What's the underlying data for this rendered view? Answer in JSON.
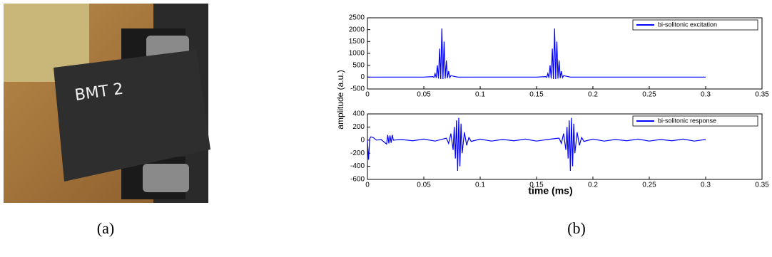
{
  "photo": {
    "label": "BMT 2"
  },
  "captions": {
    "a": "(a)",
    "b": "(b)"
  },
  "chart_data": [
    {
      "type": "line",
      "ylabel": "amplitude (a.u.)",
      "xlim": [
        0,
        0.35
      ],
      "xticks": [
        0,
        0.05,
        0.1,
        0.15,
        0.2,
        0.25,
        0.3,
        0.35
      ],
      "ylim": [
        -500,
        2500
      ],
      "yticks": [
        -500,
        0,
        500,
        1000,
        1500,
        2000,
        2500
      ],
      "legend": "upper right",
      "series": [
        {
          "name": "bi-solitonic excitation",
          "color": "#0000ff",
          "x": [
            0,
            0.05,
            0.058,
            0.059,
            0.06,
            0.061,
            0.062,
            0.063,
            0.064,
            0.065,
            0.066,
            0.067,
            0.068,
            0.069,
            0.07,
            0.071,
            0.072,
            0.073,
            0.074,
            0.08,
            0.15,
            0.158,
            0.159,
            0.16,
            0.161,
            0.162,
            0.163,
            0.164,
            0.165,
            0.166,
            0.167,
            0.168,
            0.169,
            0.17,
            0.171,
            0.172,
            0.173,
            0.174,
            0.18,
            0.3
          ],
          "values": [
            0,
            0,
            20,
            -10,
            150,
            -30,
            500,
            -60,
            1200,
            -80,
            2050,
            -80,
            1500,
            -60,
            700,
            -40,
            250,
            -20,
            60,
            0,
            0,
            20,
            -10,
            150,
            -30,
            500,
            -60,
            1200,
            -80,
            2050,
            -80,
            1500,
            -60,
            700,
            -40,
            250,
            -20,
            60,
            0,
            0
          ]
        }
      ]
    },
    {
      "type": "line",
      "xlabel": "time (ms)",
      "xlim": [
        0,
        0.35
      ],
      "xticks": [
        0,
        0.05,
        0.1,
        0.15,
        0.2,
        0.25,
        0.3,
        0.35
      ],
      "ylim": [
        -600,
        400
      ],
      "yticks": [
        -600,
        -400,
        -200,
        0,
        200,
        400
      ],
      "legend": "upper right",
      "series": [
        {
          "name": "bi-solitonic response",
          "color": "#0000ff",
          "x": [
            0,
            0.001,
            0.002,
            0.003,
            0.005,
            0.008,
            0.012,
            0.017,
            0.018,
            0.019,
            0.02,
            0.021,
            0.022,
            0.023,
            0.03,
            0.04,
            0.05,
            0.06,
            0.07,
            0.072,
            0.074,
            0.076,
            0.077,
            0.078,
            0.079,
            0.08,
            0.081,
            0.082,
            0.083,
            0.084,
            0.086,
            0.088,
            0.09,
            0.092,
            0.1,
            0.11,
            0.12,
            0.13,
            0.14,
            0.15,
            0.16,
            0.17,
            0.172,
            0.174,
            0.176,
            0.177,
            0.178,
            0.179,
            0.18,
            0.181,
            0.182,
            0.183,
            0.184,
            0.186,
            0.188,
            0.19,
            0.192,
            0.2,
            0.21,
            0.22,
            0.23,
            0.24,
            0.25,
            0.26,
            0.27,
            0.28,
            0.29,
            0.3
          ],
          "values": [
            0,
            -300,
            20,
            50,
            40,
            0,
            10,
            -60,
            80,
            -50,
            70,
            -40,
            80,
            0,
            10,
            -10,
            15,
            -15,
            30,
            -50,
            100,
            -150,
            200,
            -280,
            300,
            -470,
            340,
            -400,
            250,
            -200,
            120,
            -80,
            40,
            -20,
            15,
            -15,
            10,
            -10,
            15,
            -15,
            10,
            30,
            -50,
            100,
            -150,
            200,
            -280,
            300,
            -470,
            340,
            -400,
            250,
            -200,
            120,
            -80,
            40,
            -20,
            15,
            -15,
            10,
            -10,
            15,
            -15,
            10,
            -10,
            15,
            -15,
            10
          ]
        }
      ]
    }
  ]
}
